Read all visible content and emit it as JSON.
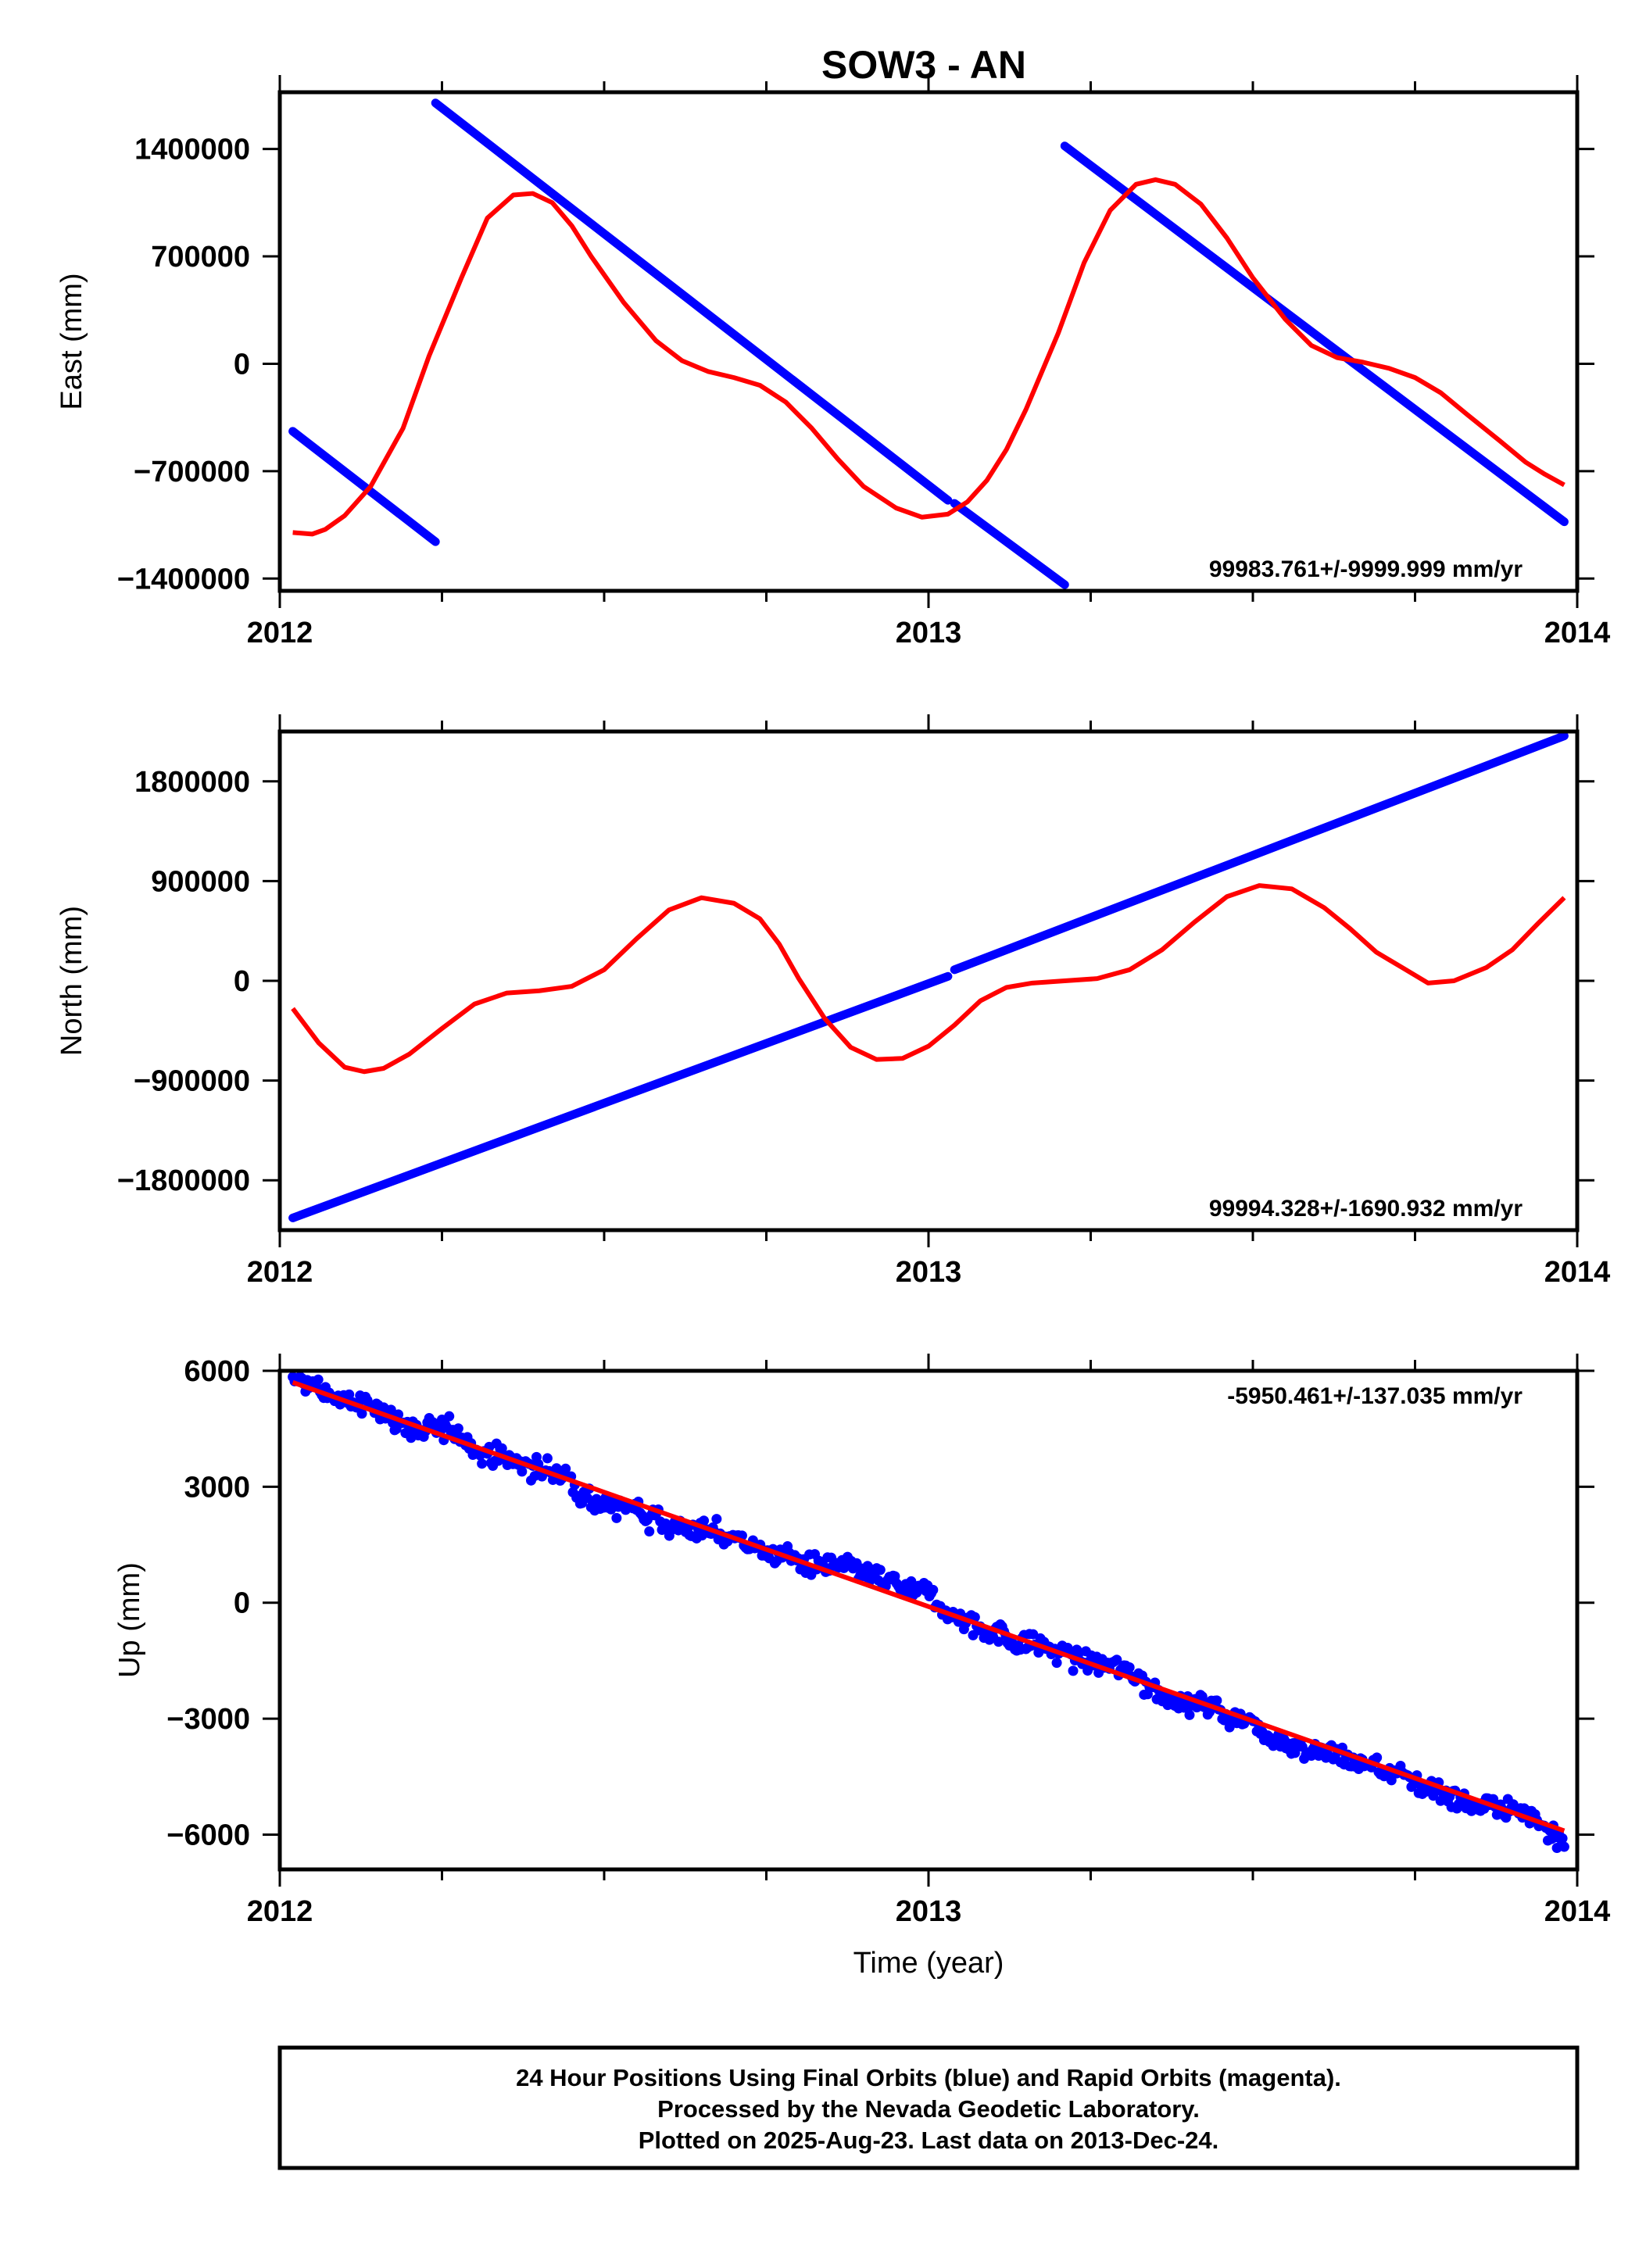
{
  "title": "SOW3 - AN",
  "footer": {
    "lines": [
      "24 Hour Positions Using Final Orbits (blue) and Rapid Orbits (magenta).",
      "Processed by the Nevada Geodetic Laboratory.",
      "Plotted on 2025-Aug-23. Last data on 2013-Dec-24."
    ]
  },
  "colors": {
    "data": "#0000ff",
    "model": "#ff0000",
    "frame": "#000000"
  },
  "chart_data": [
    {
      "type": "scatter",
      "name": "east",
      "ylabel": "East (mm)",
      "xlabel": "",
      "xlim": [
        2012.0,
        2014.0
      ],
      "ylim": [
        -1480000,
        1770000
      ],
      "xticks": [
        2012,
        2013,
        2014
      ],
      "xticklabels": [
        "2012",
        "2013",
        "2014"
      ],
      "yticks": [
        -1400000,
        -700000,
        0,
        700000,
        1400000
      ],
      "yticklabels": [
        "-1400000",
        "-700000",
        "0",
        "700000",
        "1400000"
      ],
      "rate_text": "99983.761+/-9999.999 mm/yr",
      "rate_position": "bottom-right",
      "data_segments": [
        [
          [
            2012.02,
            -440000
          ],
          [
            2012.24,
            -1160000
          ]
        ],
        [
          [
            2012.24,
            1700000
          ],
          [
            2013.03,
            -890000
          ]
        ],
        [
          [
            2013.04,
            -910000
          ],
          [
            2013.21,
            -1440000
          ]
        ],
        [
          [
            2013.21,
            1420000
          ],
          [
            2013.98,
            -1030000
          ]
        ]
      ],
      "model_curve": {
        "x": [
          2012.02,
          2012.05,
          2012.07,
          2012.1,
          2012.14,
          2012.19,
          2012.23,
          2012.28,
          2012.32,
          2012.36,
          2012.39,
          2012.42,
          2012.45,
          2012.48,
          2012.53,
          2012.58,
          2012.62,
          2012.66,
          2012.7,
          2012.74,
          2012.78,
          2012.82,
          2012.86,
          2012.9,
          2012.95,
          2012.99,
          2013.03,
          2013.06,
          2013.09,
          2013.12,
          2013.15,
          2013.2,
          2013.24,
          2013.28,
          2013.32,
          2013.35,
          2013.38,
          2013.42,
          2013.46,
          2013.5,
          2013.55,
          2013.59,
          2013.63,
          2013.67,
          2013.71,
          2013.75,
          2013.79,
          2013.83,
          2013.88,
          2013.92,
          2013.95,
          2013.98
        ],
        "y": [
          -1100000,
          -1110000,
          -1080000,
          -990000,
          -800000,
          -420000,
          50000,
          560000,
          950000,
          1100000,
          1110000,
          1050000,
          900000,
          700000,
          400000,
          150000,
          20000,
          -50000,
          -90000,
          -140000,
          -250000,
          -420000,
          -620000,
          -800000,
          -940000,
          -1000000,
          -980000,
          -900000,
          -760000,
          -560000,
          -300000,
          200000,
          660000,
          1000000,
          1170000,
          1200000,
          1170000,
          1040000,
          820000,
          560000,
          290000,
          120000,
          40000,
          10000,
          -30000,
          -90000,
          -190000,
          -330000,
          -500000,
          -640000,
          -720000,
          -790000
        ]
      }
    },
    {
      "type": "scatter",
      "name": "north",
      "ylabel": "North (mm)",
      "xlabel": "",
      "xlim": [
        2012.0,
        2014.0
      ],
      "ylim": [
        -2250000,
        2250000
      ],
      "xticks": [
        2012,
        2013,
        2014
      ],
      "xticklabels": [
        "2012",
        "2013",
        "2014"
      ],
      "yticks": [
        -1800000,
        -900000,
        0,
        900000,
        1800000
      ],
      "yticklabels": [
        "-1800000",
        "-900000",
        "0",
        "900000",
        "1800000"
      ],
      "rate_text": "99994.328+/-1690.932 mm/yr",
      "rate_position": "bottom-right",
      "data_segments": [
        [
          [
            2012.02,
            -2140000
          ],
          [
            2013.03,
            40000
          ]
        ],
        [
          [
            2013.04,
            100000
          ],
          [
            2013.98,
            2210000
          ]
        ]
      ],
      "model_curve": {
        "x": [
          2012.02,
          2012.06,
          2012.1,
          2012.13,
          2012.16,
          2012.2,
          2012.25,
          2012.3,
          2012.35,
          2012.4,
          2012.45,
          2012.5,
          2012.55,
          2012.6,
          2012.65,
          2012.7,
          2012.74,
          2012.77,
          2012.8,
          2012.84,
          2012.88,
          2012.92,
          2012.96,
          2013.0,
          2013.04,
          2013.08,
          2013.12,
          2013.16,
          2013.21,
          2013.26,
          2013.31,
          2013.36,
          2013.41,
          2013.46,
          2013.51,
          2013.56,
          2013.61,
          2013.65,
          2013.69,
          2013.73,
          2013.77,
          2013.81,
          2013.86,
          2013.9,
          2013.94,
          2013.98
        ],
        "y": [
          -250000,
          -560000,
          -780000,
          -820000,
          -790000,
          -660000,
          -430000,
          -210000,
          -110000,
          -90000,
          -50000,
          100000,
          380000,
          640000,
          750000,
          700000,
          560000,
          330000,
          20000,
          -340000,
          -600000,
          -710000,
          -700000,
          -590000,
          -400000,
          -180000,
          -60000,
          -20000,
          0,
          20000,
          100000,
          280000,
          530000,
          760000,
          860000,
          830000,
          660000,
          470000,
          260000,
          120000,
          -20000,
          0,
          120000,
          280000,
          520000,
          750000
        ]
      }
    },
    {
      "type": "scatter",
      "name": "up",
      "ylabel": "Up (mm)",
      "xlabel": "Time (year)",
      "xlim": [
        2012.0,
        2014.0
      ],
      "ylim": [
        -6900,
        6000
      ],
      "xticks": [
        2012,
        2013,
        2014
      ],
      "xticklabels": [
        "2012",
        "2013",
        "2014"
      ],
      "yticks": [
        -6000,
        -3000,
        0,
        3000,
        6000
      ],
      "yticklabels": [
        "-6000",
        "-3000",
        "0",
        "3000",
        "6000"
      ],
      "rate_text": "-5950.461+/-137.035 mm/yr",
      "rate_position": "top-right",
      "trend_line": {
        "x": [
          2012.02,
          2013.98
        ],
        "y": [
          5700,
          -5900
        ]
      },
      "points": {
        "x_start": 2012.02,
        "x_end": 2013.98,
        "count": 700,
        "y_start": 5700,
        "y_end": -5900,
        "scatter_amplitude": 600
      }
    }
  ]
}
